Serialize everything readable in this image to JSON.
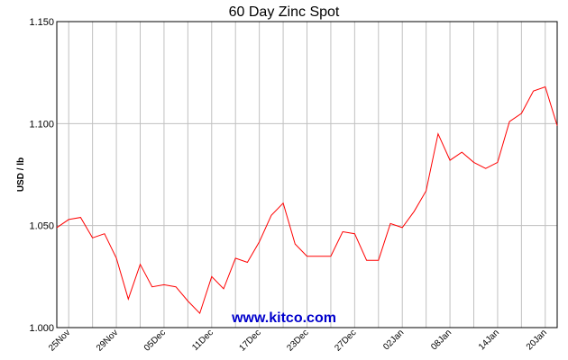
{
  "chart_data": {
    "type": "line",
    "title": "60 Day Zinc Spot",
    "ylabel": "USD / lb",
    "xlabel": "",
    "ylim": [
      1.0,
      1.15
    ],
    "yticks": [
      "1.000",
      "1.050",
      "1.100",
      "1.150"
    ],
    "ytick_values": [
      1.0,
      1.05,
      1.1,
      1.15
    ],
    "xticks": [
      "25Nov",
      "29Nov",
      "05Dec",
      "11Dec",
      "17Dec",
      "23Dec",
      "27Dec",
      "02Jan",
      "08Jan",
      "14Jan",
      "20Jan"
    ],
    "grid": true,
    "series_color": "#ff0000",
    "grid_color": "#c0c0c0",
    "watermark": "www.kitco.com",
    "series": [
      {
        "values": [
          1.049,
          1.053,
          1.054,
          1.044,
          1.046,
          1.034,
          1.014,
          1.031,
          1.02,
          1.021,
          1.02,
          1.013,
          1.007,
          1.025,
          1.019,
          1.034,
          1.032,
          1.042,
          1.055,
          1.061,
          1.041,
          1.035,
          1.035,
          1.035,
          1.047,
          1.046,
          1.033,
          1.033,
          1.051,
          1.049,
          1.057,
          1.067,
          1.095,
          1.082,
          1.086,
          1.081,
          1.078,
          1.081,
          1.101,
          1.105,
          1.116,
          1.118,
          1.099
        ]
      }
    ]
  }
}
